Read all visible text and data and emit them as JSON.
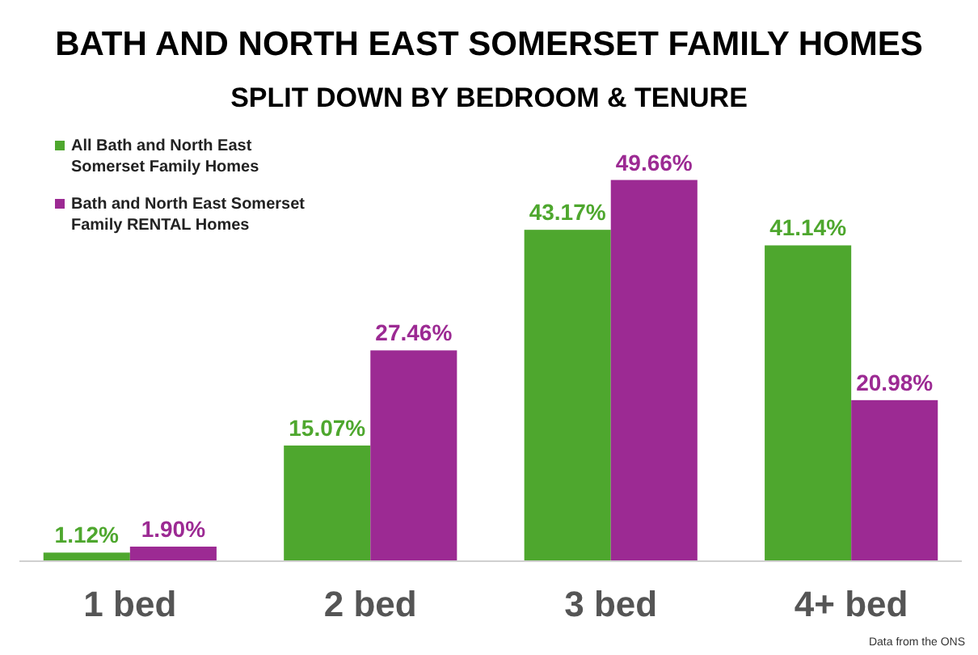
{
  "chart_data": {
    "type": "bar",
    "title": "BATH AND NORTH EAST SOMERSET FAMILY HOMES",
    "subtitle": "SPLIT DOWN BY BEDROOM & TENURE",
    "categories": [
      "1 bed",
      "2 bed",
      "3 bed",
      "4+ bed"
    ],
    "series": [
      {
        "name": "All Bath and North East Somerset Family Homes",
        "color": "#4ea72e",
        "values": [
          1.12,
          15.07,
          43.17,
          41.14
        ],
        "value_labels": [
          "1.12%",
          "15.07%",
          "43.17%",
          "41.14%"
        ]
      },
      {
        "name": "Bath and North East Somerset Family RENTAL Homes",
        "color": "#9c2a93",
        "values": [
          1.9,
          27.46,
          49.66,
          20.98
        ],
        "value_labels": [
          "1.90%",
          "27.46%",
          "49.66%",
          "20.98%"
        ]
      }
    ],
    "tick_labels": "x",
    "legend": "top left",
    "annotations": [
      "Data from the ONS"
    ]
  }
}
